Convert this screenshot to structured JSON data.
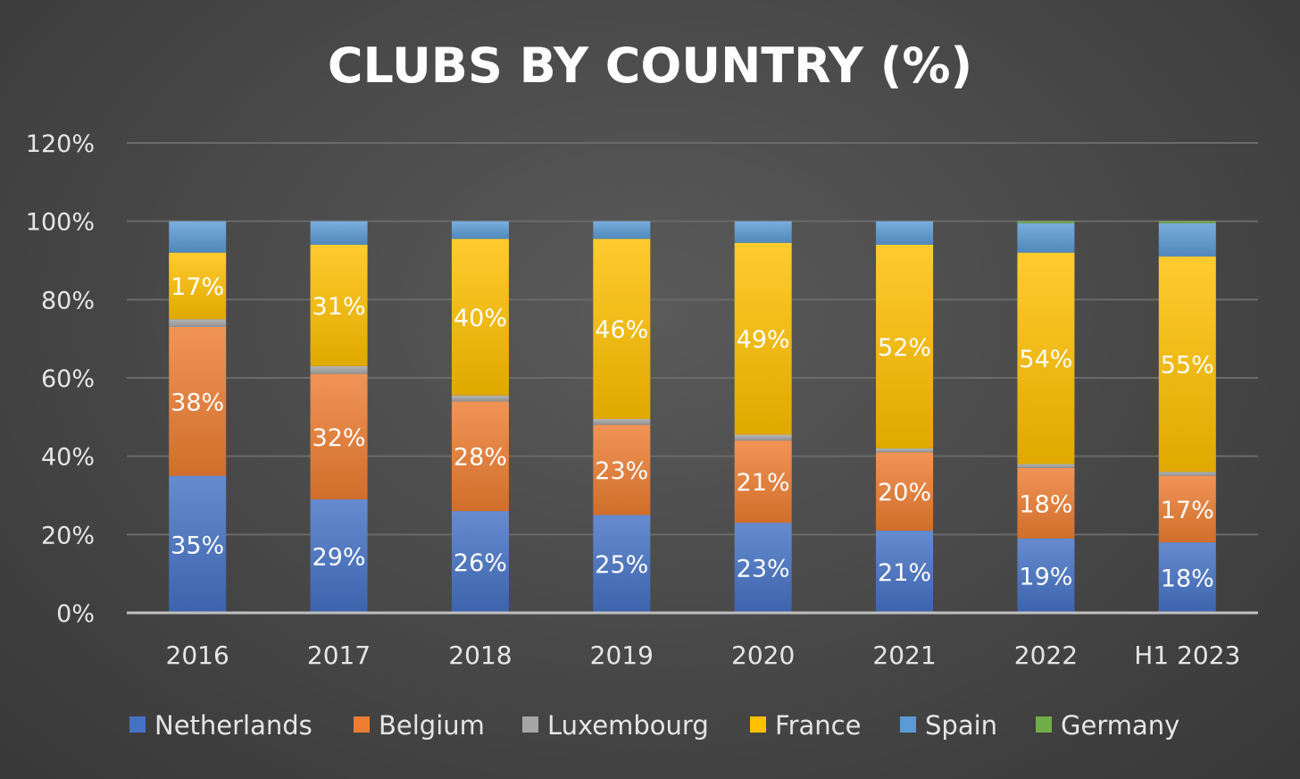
{
  "chart_data": {
    "type": "bar",
    "stacked": true,
    "title": "CLUBS BY COUNTRY (%)",
    "xlabel": "",
    "ylabel": "",
    "ylim": [
      0,
      120
    ],
    "yticks": [
      "0%",
      "20%",
      "40%",
      "60%",
      "80%",
      "100%",
      "120%"
    ],
    "grid": true,
    "legend": "bottom",
    "categories": [
      "2016",
      "2017",
      "2018",
      "2019",
      "2020",
      "2021",
      "2022",
      "H1 2023"
    ],
    "series": [
      {
        "name": "Netherlands",
        "color": "#4472C4",
        "values": [
          35,
          29,
          26,
          25,
          23,
          21,
          19,
          18
        ],
        "labels": [
          "35%",
          "29%",
          "26%",
          "25%",
          "23%",
          "21%",
          "19%",
          "18%"
        ]
      },
      {
        "name": "Belgium",
        "color": "#ED7D31",
        "values": [
          38,
          32,
          28,
          23,
          21,
          20,
          18,
          17
        ],
        "labels": [
          "38%",
          "32%",
          "28%",
          "23%",
          "21%",
          "20%",
          "18%",
          "17%"
        ]
      },
      {
        "name": "Luxembourg",
        "color": "#A5A5A5",
        "values": [
          2,
          2,
          1.5,
          1.5,
          1.5,
          1,
          1,
          1
        ],
        "labels": []
      },
      {
        "name": "France",
        "color": "#FFC000",
        "values": [
          17,
          31,
          40,
          46,
          49,
          52,
          54,
          55
        ],
        "labels": [
          "17%",
          "31%",
          "40%",
          "46%",
          "49%",
          "52%",
          "54%",
          "55%"
        ]
      },
      {
        "name": "Spain",
        "color": "#5B9BD5",
        "values": [
          8,
          6,
          4.5,
          4.5,
          5.5,
          6,
          7.5,
          8.5
        ],
        "labels": []
      },
      {
        "name": "Germany",
        "color": "#70AD47",
        "values": [
          0,
          0,
          0,
          0,
          0,
          0,
          0.5,
          0.5
        ],
        "labels": []
      }
    ]
  }
}
